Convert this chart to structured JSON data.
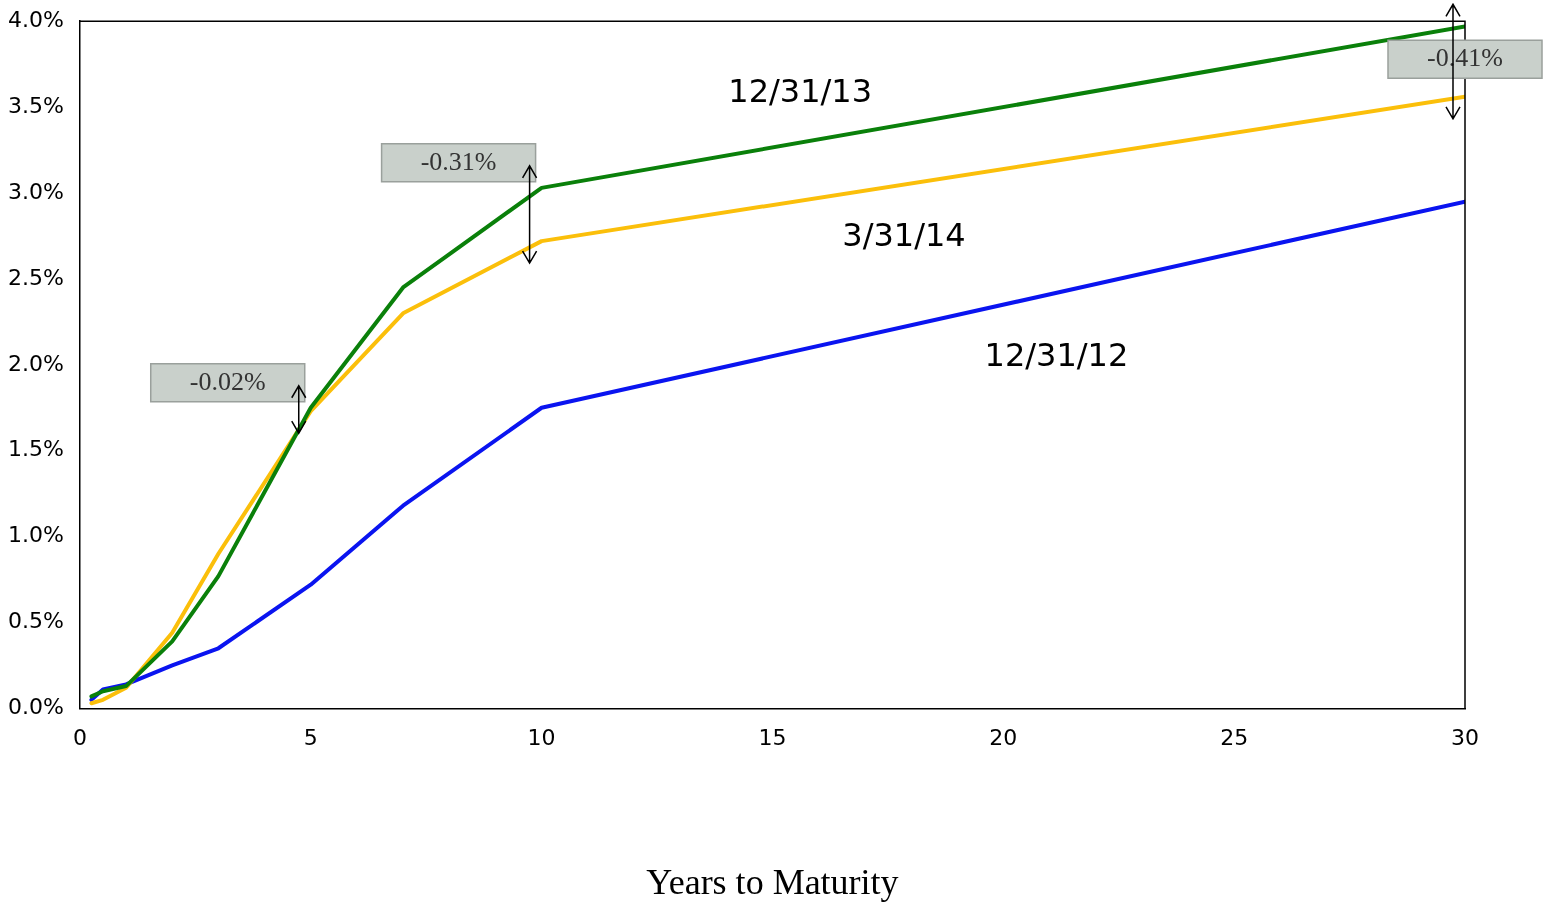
{
  "chart_data": {
    "type": "line",
    "xlabel": "Years to Maturity",
    "x": [
      0.25,
      0.5,
      1,
      2,
      3,
      5,
      7,
      10,
      30
    ],
    "series": [
      {
        "name": "12/31/13",
        "color": "#0a800a",
        "values": [
          0.07,
          0.1,
          0.13,
          0.39,
          0.77,
          1.75,
          2.45,
          3.03,
          3.97
        ]
      },
      {
        "name": "3/31/14",
        "color": "#fbbf0a",
        "values": [
          0.03,
          0.05,
          0.12,
          0.44,
          0.9,
          1.73,
          2.3,
          2.72,
          3.56
        ]
      },
      {
        "name": "12/31/12",
        "color": "#0a14f0",
        "values": [
          0.05,
          0.11,
          0.14,
          0.25,
          0.35,
          0.72,
          1.18,
          1.75,
          2.95
        ]
      }
    ],
    "xlim": [
      0,
      30
    ],
    "xticks": [
      0,
      5,
      10,
      15,
      20,
      25,
      30
    ],
    "ylim": [
      0,
      4
    ],
    "yticks": [
      {
        "value": 0,
        "label": "0.0%"
      },
      {
        "value": 0.5,
        "label": "0.5%"
      },
      {
        "value": 1,
        "label": "1.0%"
      },
      {
        "value": 1.5,
        "label": "1.5%"
      },
      {
        "value": 2,
        "label": "2.0%"
      },
      {
        "value": 2.5,
        "label": "2.5%"
      },
      {
        "value": 3,
        "label": "3.0%"
      },
      {
        "value": 3.5,
        "label": "3.5%"
      },
      {
        "value": 4,
        "label": "4.0%"
      }
    ],
    "annotations": [
      {
        "text": "-0.02%",
        "x": 5,
        "y": 1.75
      },
      {
        "text": "-0.31%",
        "x": 10,
        "y": 3.03
      },
      {
        "text": "-0.41%",
        "x": 30,
        "y": 3.97
      }
    ],
    "grid": false,
    "legend": false,
    "marker": "none",
    "line_style": "solid"
  }
}
